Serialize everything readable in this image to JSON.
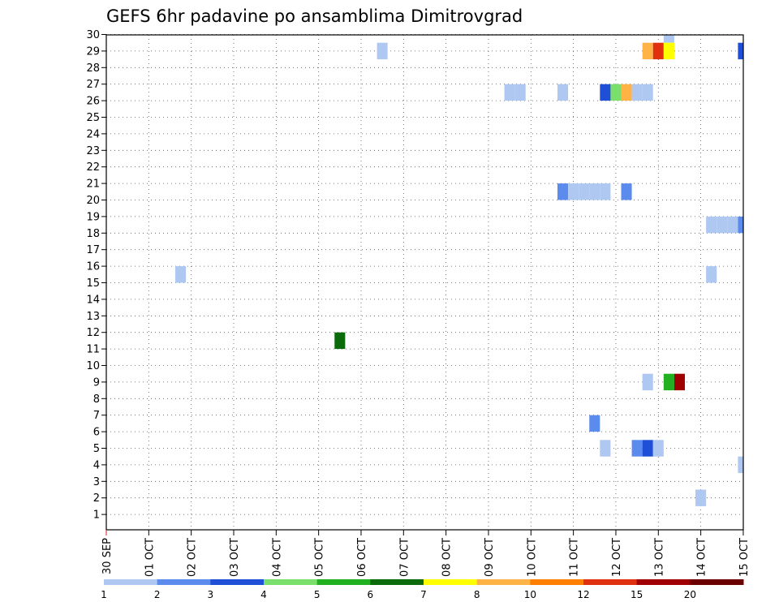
{
  "chart_data": {
    "type": "heatmap",
    "title": "GEFS 6hr padavine po ansamblima Dimitrovgrad",
    "x_tick_labels": [
      "30 SEP",
      "01 OCT",
      "02 OCT",
      "03 OCT",
      "04 OCT",
      "05 OCT",
      "06 OCT",
      "07 OCT",
      "08 OCT",
      "09 OCT",
      "10 OCT",
      "11 OCT",
      "12 OCT",
      "13 OCT",
      "14 OCT",
      "15 OCT"
    ],
    "y_tick_labels": [
      "1",
      "2",
      "3",
      "4",
      "5",
      "6",
      "7",
      "8",
      "9",
      "10",
      "11",
      "12",
      "13",
      "14",
      "15",
      "16",
      "17",
      "18",
      "19",
      "20",
      "21",
      "22",
      "23",
      "24",
      "25",
      "26",
      "27",
      "28",
      "29",
      "30"
    ],
    "x_range_days": [
      0,
      15
    ],
    "y_range": [
      0,
      30.5
    ],
    "grid": true,
    "colorbar": {
      "labels": [
        "1",
        "2",
        "3",
        "4",
        "5",
        "6",
        "7",
        "8",
        "10",
        "12",
        "15",
        "20"
      ],
      "colors": [
        "#aec8f2",
        "#5b8ced",
        "#1f4fd6",
        "#7be06b",
        "#20b020",
        "#0b6b0b",
        "#ffff00",
        "#ffb347",
        "#ff7f00",
        "#e03010",
        "#a00000",
        "#6b0000"
      ]
    },
    "cells": [
      {
        "day": 13.25,
        "member": 30,
        "color": "#aec8f2"
      },
      {
        "day": 6.5,
        "member": 29,
        "color": "#aec8f2"
      },
      {
        "day": 12.75,
        "member": 29,
        "color": "#ffb347"
      },
      {
        "day": 13.0,
        "member": 29,
        "color": "#e03010"
      },
      {
        "day": 13.25,
        "member": 29,
        "color": "#ffff00"
      },
      {
        "day": 15.0,
        "member": 29,
        "color": "#1f4fd6"
      },
      {
        "day": 9.5,
        "member": 26.5,
        "color": "#aec8f2"
      },
      {
        "day": 9.75,
        "member": 26.5,
        "color": "#aec8f2"
      },
      {
        "day": 10.75,
        "member": 26.5,
        "color": "#aec8f2"
      },
      {
        "day": 11.75,
        "member": 26.5,
        "color": "#1f4fd6"
      },
      {
        "day": 12.0,
        "member": 26.5,
        "color": "#7be06b"
      },
      {
        "day": 12.25,
        "member": 26.5,
        "color": "#ffb347"
      },
      {
        "day": 12.5,
        "member": 26.5,
        "color": "#aec8f2"
      },
      {
        "day": 12.75,
        "member": 26.5,
        "color": "#aec8f2"
      },
      {
        "day": 10.75,
        "member": 20.5,
        "color": "#5b8ced"
      },
      {
        "day": 11.0,
        "member": 20.5,
        "color": "#aec8f2"
      },
      {
        "day": 11.25,
        "member": 20.5,
        "color": "#aec8f2"
      },
      {
        "day": 11.5,
        "member": 20.5,
        "color": "#aec8f2"
      },
      {
        "day": 11.75,
        "member": 20.5,
        "color": "#aec8f2"
      },
      {
        "day": 12.25,
        "member": 20.5,
        "color": "#5b8ced"
      },
      {
        "day": 14.25,
        "member": 18.5,
        "color": "#aec8f2"
      },
      {
        "day": 14.5,
        "member": 18.5,
        "color": "#aec8f2"
      },
      {
        "day": 14.75,
        "member": 18.5,
        "color": "#aec8f2"
      },
      {
        "day": 15.0,
        "member": 18.5,
        "color": "#5b8ced"
      },
      {
        "day": 1.75,
        "member": 15.5,
        "color": "#aec8f2"
      },
      {
        "day": 14.25,
        "member": 15.5,
        "color": "#aec8f2"
      },
      {
        "day": 5.5,
        "member": 11.5,
        "color": "#0b6b0b"
      },
      {
        "day": 12.75,
        "member": 9,
        "color": "#aec8f2"
      },
      {
        "day": 13.25,
        "member": 9,
        "color": "#20b020"
      },
      {
        "day": 13.5,
        "member": 9,
        "color": "#a00000"
      },
      {
        "day": 11.5,
        "member": 6.5,
        "color": "#5b8ced"
      },
      {
        "day": 11.75,
        "member": 5,
        "color": "#aec8f2"
      },
      {
        "day": 12.5,
        "member": 5,
        "color": "#5b8ced"
      },
      {
        "day": 12.75,
        "member": 5,
        "color": "#1f4fd6"
      },
      {
        "day": 13.0,
        "member": 5,
        "color": "#aec8f2"
      },
      {
        "day": 15.0,
        "member": 4,
        "color": "#aec8f2"
      },
      {
        "day": 14.0,
        "member": 2,
        "color": "#aec8f2"
      }
    ]
  }
}
